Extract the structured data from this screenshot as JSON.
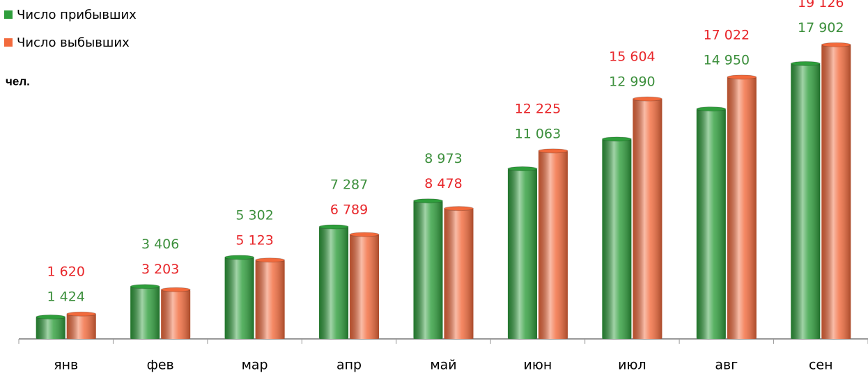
{
  "chart_data": {
    "type": "bar",
    "y_label": "чел.",
    "categories": [
      "янв",
      "фев",
      "мар",
      "апр",
      "май",
      "июн",
      "июл",
      "авг",
      "сен"
    ],
    "ylim": [
      0,
      20000
    ],
    "series": [
      {
        "name": "Число прибывших",
        "color": "#2f9e3c",
        "label_color": "#3c8f3c",
        "values": [
          1424,
          3406,
          5302,
          7287,
          8973,
          11063,
          12990,
          14950,
          17902
        ],
        "value_labels": [
          "1 424",
          "3 406",
          "5 302",
          "7 287",
          "8 973",
          "11 063",
          "12 990",
          "14 950",
          "17 902"
        ]
      },
      {
        "name": "Число выбывших",
        "color": "#f26a3c",
        "label_color": "#e8262a",
        "values": [
          1620,
          3203,
          5123,
          6789,
          8478,
          12225,
          15604,
          17022,
          19126
        ],
        "value_labels": [
          "1 620",
          "3 203",
          "5 123",
          "6 789",
          "8 478",
          "12 225",
          "15 604",
          "17 022",
          "19 126"
        ]
      }
    ]
  }
}
